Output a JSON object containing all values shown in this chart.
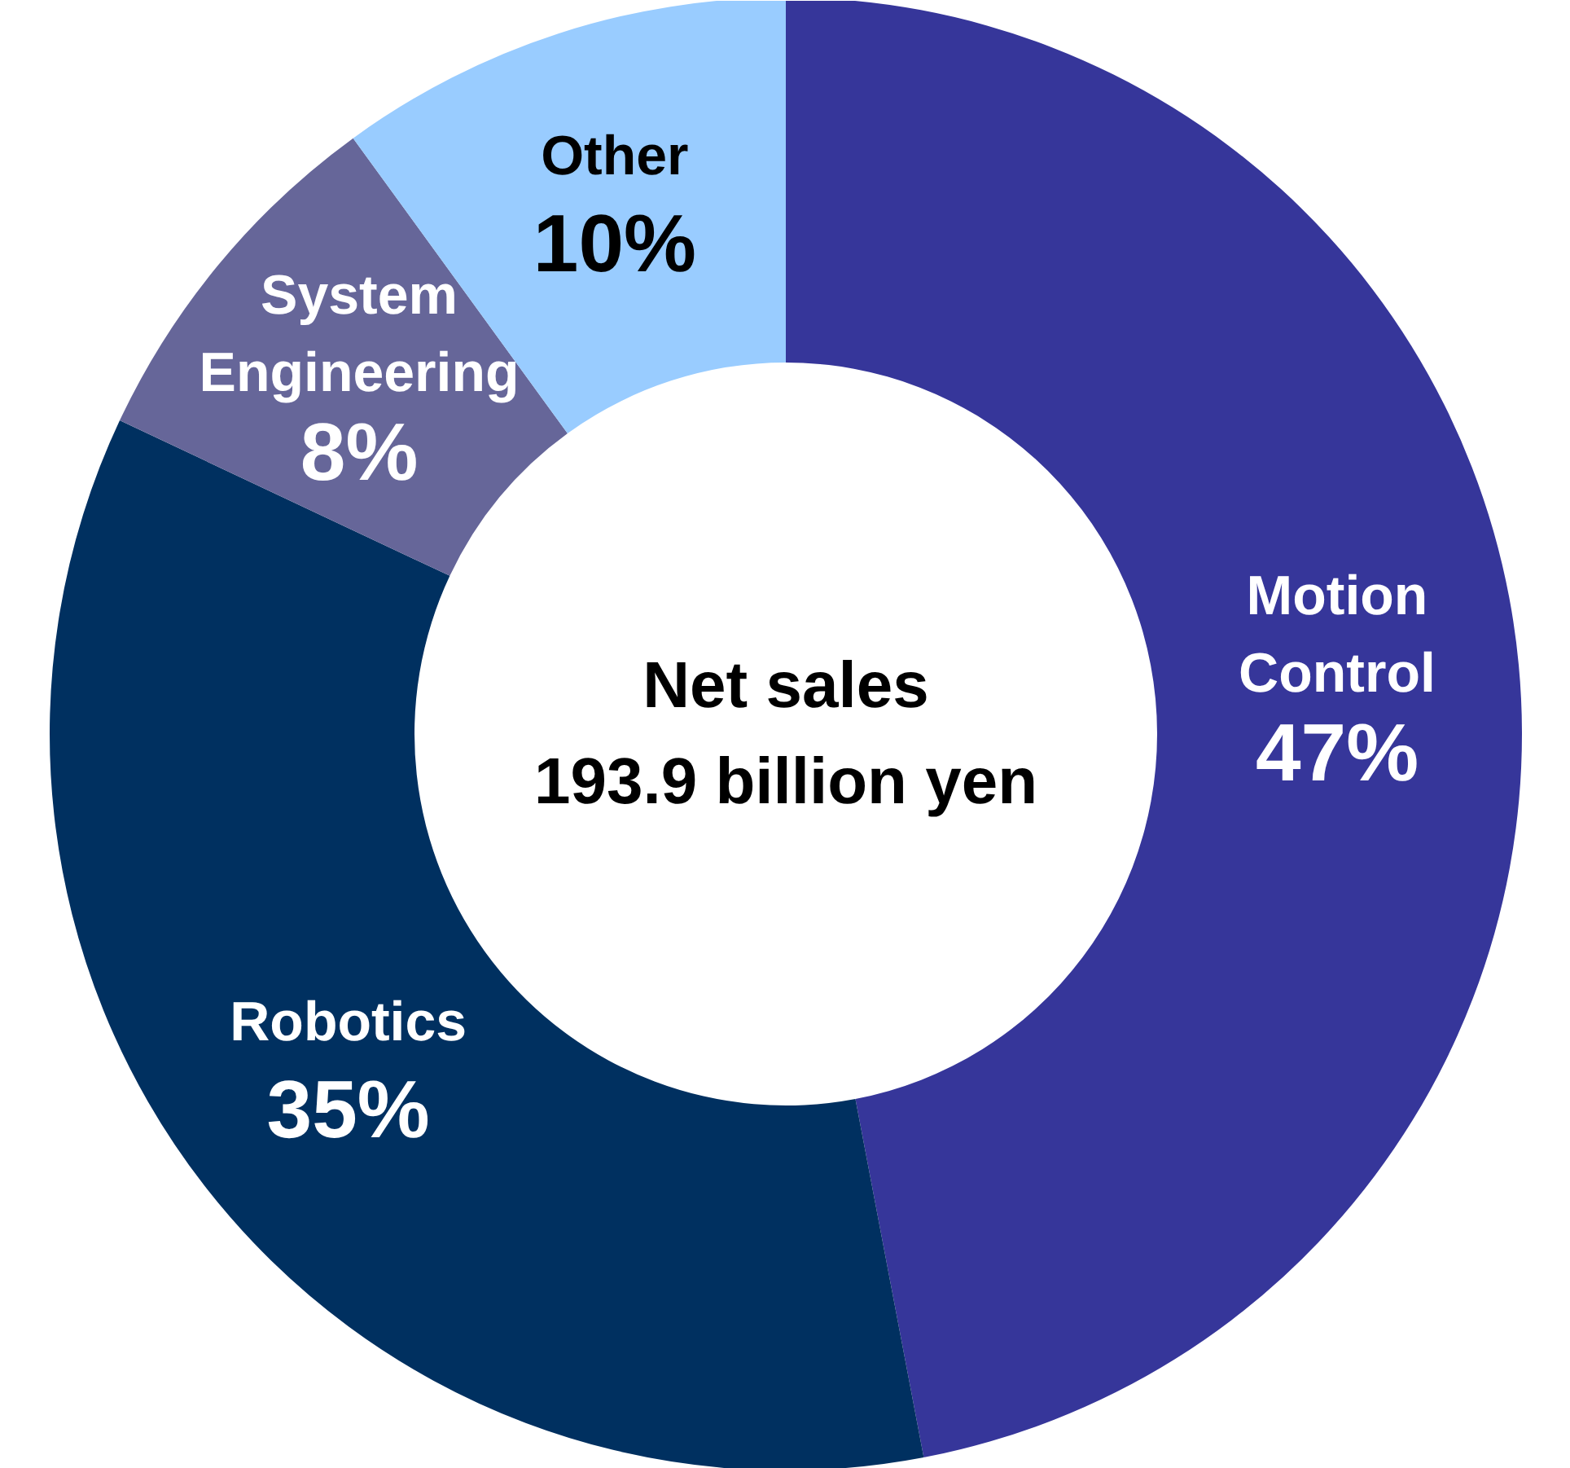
{
  "chart_data": {
    "type": "donut",
    "categories": [
      "Motion\nControl",
      "Robotics",
      "System\nEngineering",
      "Other"
    ],
    "values": [
      47,
      35,
      8,
      10
    ],
    "colors": [
      "#36369a",
      "#003060",
      "#666699",
      "#99ccff"
    ],
    "value_labels": [
      "47%",
      "35%",
      "8%",
      "10%"
    ],
    "annotations": [
      "Net sales\n193.9 billion yen"
    ]
  }
}
